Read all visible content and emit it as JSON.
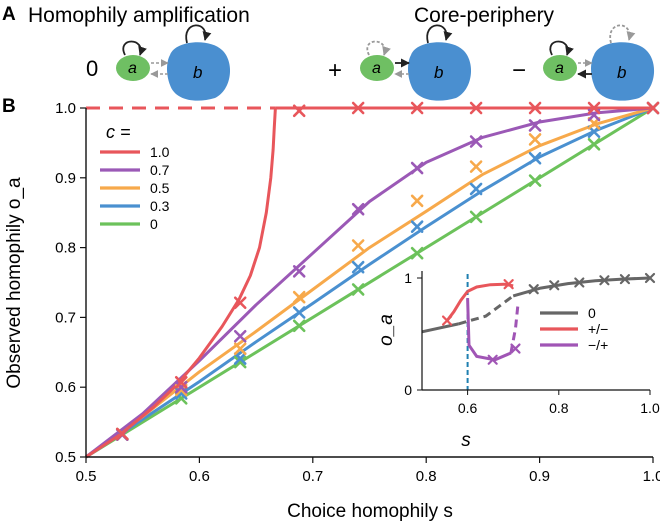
{
  "panel_a": {
    "label": "A",
    "title_left": "Homophily amplification",
    "title_right": "Core-periphery",
    "motifs": [
      {
        "sign": "0",
        "node_a": "a",
        "node_b": "b"
      },
      {
        "sign": "+",
        "node_a": "a",
        "node_b": "b"
      },
      {
        "sign": "−",
        "node_a": "a",
        "node_b": "b"
      }
    ],
    "colors": {
      "node_a": "#6fbf63",
      "node_b": "#4a8fd0",
      "edge_solid": "#222222",
      "edge_dashed": "#999999"
    }
  },
  "panel_b": {
    "label": "B"
  },
  "chart_data": [
    {
      "type": "line",
      "xlabel": "Choice  homophily s",
      "ylabel": "Observed homophily o_a",
      "xlim": [
        0.5,
        1.0
      ],
      "ylim": [
        0.5,
        1.0
      ],
      "xticks": [
        "0.5",
        "0.6",
        "0.7",
        "0.8",
        "0.9",
        "1.0"
      ],
      "yticks": [
        "0.5",
        "0.6",
        "0.7",
        "0.8",
        "0.9",
        "1.0"
      ],
      "legend_title": "c =",
      "legend_position": "top-left",
      "grid": false,
      "series": [
        {
          "name": "1.0",
          "color": "#e8565b",
          "x": [
            0.5,
            0.53,
            0.56,
            0.58,
            0.6,
            0.62,
            0.635,
            0.645,
            0.653,
            0.659,
            0.663,
            0.665,
            0.666,
            0.667
          ],
          "y": [
            0.5,
            0.532,
            0.572,
            0.603,
            0.642,
            0.687,
            0.726,
            0.76,
            0.8,
            0.85,
            0.9,
            0.94,
            0.97,
            1.0
          ],
          "upper_x": [
            0.667,
            1.0
          ],
          "upper_y": [
            1.0,
            1.0
          ],
          "dashed_x": [
            0.5,
            0.667
          ],
          "dashed_y": [
            1.0,
            1.0
          ],
          "markers_x": [
            0.532,
            0.584,
            0.636,
            0.688,
            0.74,
            0.792,
            0.844,
            0.896,
            0.948,
            1.0
          ],
          "markers_y": [
            0.533,
            0.607,
            0.721,
            0.996,
            1.0,
            1.0,
            1.0,
            1.0,
            1.0,
            1.0
          ]
        },
        {
          "name": "0.7",
          "color": "#9b59b6",
          "x": [
            0.5,
            0.55,
            0.6,
            0.65,
            0.7,
            0.75,
            0.8,
            0.85,
            0.9,
            0.95,
            1.0
          ],
          "y": [
            0.5,
            0.562,
            0.638,
            0.718,
            0.792,
            0.866,
            0.922,
            0.958,
            0.98,
            0.993,
            1.0
          ],
          "markers_x": [
            0.532,
            0.584,
            0.636,
            0.688,
            0.74,
            0.792,
            0.844,
            0.896,
            0.948,
            1.0
          ],
          "markers_y": [
            0.532,
            0.6,
            0.673,
            0.766,
            0.855,
            0.914,
            0.952,
            0.975,
            0.99,
            1.0
          ]
        },
        {
          "name": "0.5",
          "color": "#f7a94b",
          "x": [
            0.5,
            0.55,
            0.6,
            0.65,
            0.7,
            0.75,
            0.8,
            0.85,
            0.9,
            0.95,
            1.0
          ],
          "y": [
            0.5,
            0.558,
            0.622,
            0.68,
            0.74,
            0.8,
            0.852,
            0.905,
            0.946,
            0.977,
            1.0
          ],
          "markers_x": [
            0.532,
            0.584,
            0.636,
            0.688,
            0.74,
            0.792,
            0.844,
            0.896,
            0.948,
            1.0
          ],
          "markers_y": [
            0.533,
            0.596,
            0.655,
            0.729,
            0.803,
            0.867,
            0.916,
            0.955,
            0.978,
            1.0
          ]
        },
        {
          "name": "0.3",
          "color": "#4a90d0",
          "x": [
            0.5,
            0.55,
            0.6,
            0.65,
            0.7,
            0.75,
            0.8,
            0.85,
            0.9,
            0.95,
            1.0
          ],
          "y": [
            0.5,
            0.554,
            0.608,
            0.665,
            0.72,
            0.776,
            0.83,
            0.882,
            0.93,
            0.968,
            1.0
          ],
          "markers_x": [
            0.532,
            0.584,
            0.636,
            0.688,
            0.74,
            0.792,
            0.844,
            0.896,
            0.948,
            1.0
          ],
          "markers_y": [
            0.533,
            0.591,
            0.641,
            0.707,
            0.772,
            0.83,
            0.884,
            0.928,
            0.966,
            1.0
          ]
        },
        {
          "name": "0",
          "color": "#6cc25b",
          "x": [
            0.5,
            1.0
          ],
          "y": [
            0.5,
            1.0
          ],
          "markers_x": [
            0.532,
            0.584,
            0.636,
            0.688,
            0.74,
            0.792,
            0.844,
            0.896,
            0.948,
            1.0
          ],
          "markers_y": [
            0.532,
            0.584,
            0.636,
            0.688,
            0.74,
            0.792,
            0.844,
            0.896,
            0.948,
            1.0
          ]
        }
      ]
    },
    {
      "type": "line",
      "xlabel": "s",
      "ylabel": "o_a",
      "xlim": [
        0.5,
        1.0
      ],
      "ylim": [
        0,
        1
      ],
      "xticks": [
        "0.6",
        "0.8",
        "1.0"
      ],
      "yticks": [
        "0",
        "1"
      ],
      "vline_x": 0.6,
      "legend_position": "right",
      "series": [
        {
          "name": "0",
          "color": "#666666",
          "x": [
            0.5,
            0.58,
            0.64,
            0.7,
            0.76,
            0.82,
            0.88,
            0.94,
            1.0
          ],
          "y": [
            0.52,
            0.59,
            0.66,
            0.84,
            0.91,
            0.95,
            0.975,
            0.99,
            1.0
          ],
          "dashed_range": [
            0.58,
            0.7
          ],
          "markers_x": [
            0.745,
            0.79,
            0.845,
            0.9,
            0.945,
            1.0
          ],
          "markers_y": [
            0.9,
            0.935,
            0.96,
            0.98,
            0.99,
            1.0
          ]
        },
        {
          "name": "+/−",
          "color": "#e8565b",
          "x": [
            0.6,
            0.62,
            0.65,
            0.68,
            0.7
          ],
          "y": [
            0.88,
            0.92,
            0.94,
            0.945,
            0.93
          ],
          "lower_x": [
            0.6,
            0.585,
            0.57,
            0.555
          ],
          "lower_y": [
            0.88,
            0.8,
            0.7,
            0.62
          ],
          "markers_x": [
            0.555,
            0.69
          ],
          "markers_y": [
            0.62,
            0.945
          ]
        },
        {
          "name": "−/+",
          "color": "#a055b5",
          "x": [
            0.6,
            0.603,
            0.62,
            0.66,
            0.695,
            0.705,
            0.71
          ],
          "y": [
            0.82,
            0.4,
            0.3,
            0.27,
            0.33,
            0.55,
            0.75
          ],
          "dashed_range": [
            0.695,
            0.71
          ],
          "markers_x": [
            0.655,
            0.705
          ],
          "markers_y": [
            0.27,
            0.37
          ]
        }
      ]
    }
  ]
}
